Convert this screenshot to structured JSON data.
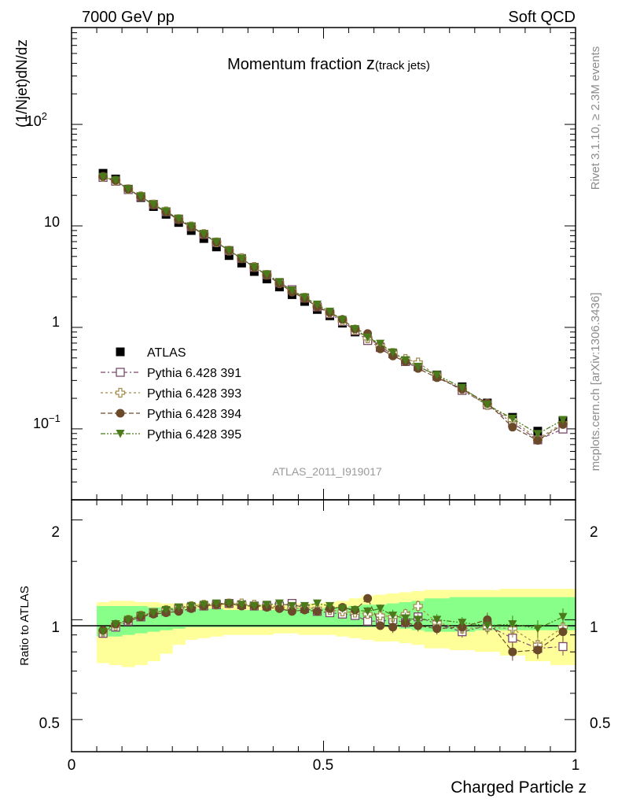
{
  "header": {
    "left": "7000 GeV pp",
    "right": "Soft QCD"
  },
  "side_text": {
    "rivet": "Rivet 3.1.10, ≥ 2.3M events",
    "mcplots": "mcplots.cern.ch [arXiv:1306.3436]"
  },
  "main_panel": {
    "title_main": "Momentum fraction ",
    "title_z": "z",
    "title_sub": "(track jets)",
    "ylabel": "(1/Njet)dN/dz",
    "analysis_tag": "ATLAS_2011_I919017",
    "ytick_labels": {
      "e2": "10",
      "e2_exp": "2",
      "ten": "10",
      "one": "1",
      "em1": "10",
      "em1_exp": "−1"
    }
  },
  "ratio_panel": {
    "ylabel": "Ratio to ATLAS",
    "ytick_labels": [
      "2",
      "1",
      "0.5"
    ]
  },
  "xaxis": {
    "label": "Charged Particle z",
    "tick_labels": [
      "0",
      "0.5",
      "1"
    ]
  },
  "legend": [
    {
      "label": "ATLAS",
      "marker": "square-filled",
      "color": "#000000"
    },
    {
      "label": "Pythia 6.428 391",
      "marker": "square-open",
      "color": "#7a4a6a"
    },
    {
      "label": "Pythia 6.428 393",
      "marker": "cross-open",
      "color": "#a08a4a"
    },
    {
      "label": "Pythia 6.428 394",
      "marker": "circle-filled",
      "color": "#6b4a2a"
    },
    {
      "label": "Pythia 6.428 395",
      "marker": "triangle-down-filled",
      "color": "#4a7a1a"
    }
  ],
  "chart_data": {
    "type": "scatter",
    "x_scale": "linear",
    "xlim": [
      0,
      1
    ],
    "main_ylim": [
      0.02,
      900
    ],
    "main_yscale": "log",
    "ratio_ylim": [
      0.4,
      2.3
    ],
    "ratio_yscale": "log",
    "x": [
      0.0625,
      0.0875,
      0.1125,
      0.1375,
      0.1625,
      0.1875,
      0.2125,
      0.2375,
      0.2625,
      0.2875,
      0.3125,
      0.3375,
      0.3625,
      0.3875,
      0.4125,
      0.4375,
      0.4625,
      0.4875,
      0.5125,
      0.5375,
      0.5625,
      0.5875,
      0.6125,
      0.6375,
      0.6625,
      0.6875,
      0.725,
      0.775,
      0.825,
      0.875,
      0.925,
      0.975
    ],
    "atlas": [
      33,
      29,
      23,
      19,
      15.5,
      13,
      10.8,
      9,
      7.5,
      6.2,
      5.1,
      4.3,
      3.55,
      3.0,
      2.5,
      2.1,
      1.8,
      1.5,
      1.3,
      1.1,
      0.9,
      0.75,
      0.64,
      0.55,
      0.47,
      0.41,
      0.34,
      0.26,
      0.18,
      0.13,
      0.095,
      0.12
    ],
    "series": [
      {
        "name": "Pythia 6.428 391",
        "ratio": [
          0.91,
          0.95,
          0.99,
          1.02,
          1.05,
          1.06,
          1.08,
          1.09,
          1.1,
          1.11,
          1.12,
          1.11,
          1.1,
          1.1,
          1.1,
          1.12,
          1.08,
          1.06,
          1.05,
          1.04,
          1.03,
          0.99,
          0.99,
          1.0,
          0.98,
          1.02,
          0.97,
          0.92,
          0.96,
          0.88,
          0.82,
          0.83
        ]
      },
      {
        "name": "Pythia 6.428 393",
        "ratio": [
          0.92,
          0.96,
          1.0,
          1.03,
          1.05,
          1.07,
          1.08,
          1.1,
          1.11,
          1.11,
          1.12,
          1.12,
          1.11,
          1.1,
          1.09,
          1.08,
          1.09,
          1.08,
          1.07,
          1.06,
          1.05,
          1.04,
          1.03,
          1.02,
          1.04,
          1.1,
          0.98,
          0.94,
          0.95,
          0.94,
          0.84,
          0.95
        ]
      },
      {
        "name": "Pythia 6.428 394",
        "ratio": [
          0.93,
          0.97,
          1.0,
          1.02,
          1.04,
          1.05,
          1.06,
          1.08,
          1.1,
          1.11,
          1.12,
          1.1,
          1.1,
          1.09,
          1.08,
          1.06,
          1.07,
          1.06,
          1.08,
          1.09,
          1.07,
          1.16,
          0.96,
          0.95,
          0.98,
          0.96,
          0.94,
          0.95,
          1.0,
          0.8,
          0.81,
          0.92
        ]
      },
      {
        "name": "Pythia 6.428 395",
        "ratio": [
          0.92,
          0.97,
          1.0,
          1.03,
          1.05,
          1.07,
          1.09,
          1.1,
          1.11,
          1.12,
          1.12,
          1.11,
          1.1,
          1.11,
          1.12,
          1.1,
          1.1,
          1.12,
          1.1,
          1.08,
          1.07,
          1.06,
          1.08,
          1.03,
          1.01,
          1.0,
          1.0,
          0.98,
          0.96,
          0.97,
          0.94,
          1.02
        ]
      }
    ],
    "band_x_edges": [
      0.05,
      0.075,
      0.1,
      0.125,
      0.15,
      0.175,
      0.2,
      0.225,
      0.25,
      0.275,
      0.3,
      0.325,
      0.35,
      0.375,
      0.4,
      0.425,
      0.45,
      0.475,
      0.5,
      0.525,
      0.55,
      0.575,
      0.6,
      0.625,
      0.65,
      0.675,
      0.7,
      0.75,
      0.8,
      0.85,
      0.9,
      0.95,
      1.0
    ],
    "band_inner": [
      [
        0.89,
        1.1
      ],
      [
        0.89,
        1.1
      ],
      [
        0.9,
        1.1
      ],
      [
        0.91,
        1.1
      ],
      [
        0.92,
        1.09
      ],
      [
        0.93,
        1.09
      ],
      [
        0.94,
        1.08
      ],
      [
        0.95,
        1.08
      ],
      [
        0.95,
        1.08
      ],
      [
        0.95,
        1.08
      ],
      [
        0.95,
        1.07
      ],
      [
        0.95,
        1.07
      ],
      [
        0.95,
        1.07
      ],
      [
        0.95,
        1.07
      ],
      [
        0.95,
        1.07
      ],
      [
        0.95,
        1.08
      ],
      [
        0.95,
        1.08
      ],
      [
        0.95,
        1.08
      ],
      [
        0.95,
        1.09
      ],
      [
        0.95,
        1.09
      ],
      [
        0.95,
        1.1
      ],
      [
        0.95,
        1.11
      ],
      [
        0.95,
        1.11
      ],
      [
        0.95,
        1.12
      ],
      [
        0.94,
        1.13
      ],
      [
        0.93,
        1.14
      ],
      [
        0.92,
        1.16
      ],
      [
        0.92,
        1.17
      ],
      [
        0.93,
        1.17
      ],
      [
        0.93,
        1.17
      ],
      [
        0.93,
        1.17
      ],
      [
        0.93,
        1.17
      ]
    ],
    "band_outer": [
      [
        0.74,
        1.13
      ],
      [
        0.73,
        1.14
      ],
      [
        0.72,
        1.14
      ],
      [
        0.73,
        1.13
      ],
      [
        0.75,
        1.13
      ],
      [
        0.79,
        1.12
      ],
      [
        0.84,
        1.12
      ],
      [
        0.87,
        1.12
      ],
      [
        0.88,
        1.12
      ],
      [
        0.89,
        1.11
      ],
      [
        0.9,
        1.11
      ],
      [
        0.9,
        1.11
      ],
      [
        0.9,
        1.11
      ],
      [
        0.9,
        1.11
      ],
      [
        0.91,
        1.11
      ],
      [
        0.91,
        1.12
      ],
      [
        0.9,
        1.12
      ],
      [
        0.9,
        1.12
      ],
      [
        0.9,
        1.13
      ],
      [
        0.89,
        1.14
      ],
      [
        0.88,
        1.16
      ],
      [
        0.87,
        1.18
      ],
      [
        0.86,
        1.19
      ],
      [
        0.86,
        1.2
      ],
      [
        0.85,
        1.21
      ],
      [
        0.84,
        1.22
      ],
      [
        0.82,
        1.23
      ],
      [
        0.81,
        1.23
      ],
      [
        0.8,
        1.23
      ],
      [
        0.78,
        1.24
      ],
      [
        0.75,
        1.24
      ],
      [
        0.73,
        1.24
      ]
    ],
    "legend_position": "center-left"
  }
}
